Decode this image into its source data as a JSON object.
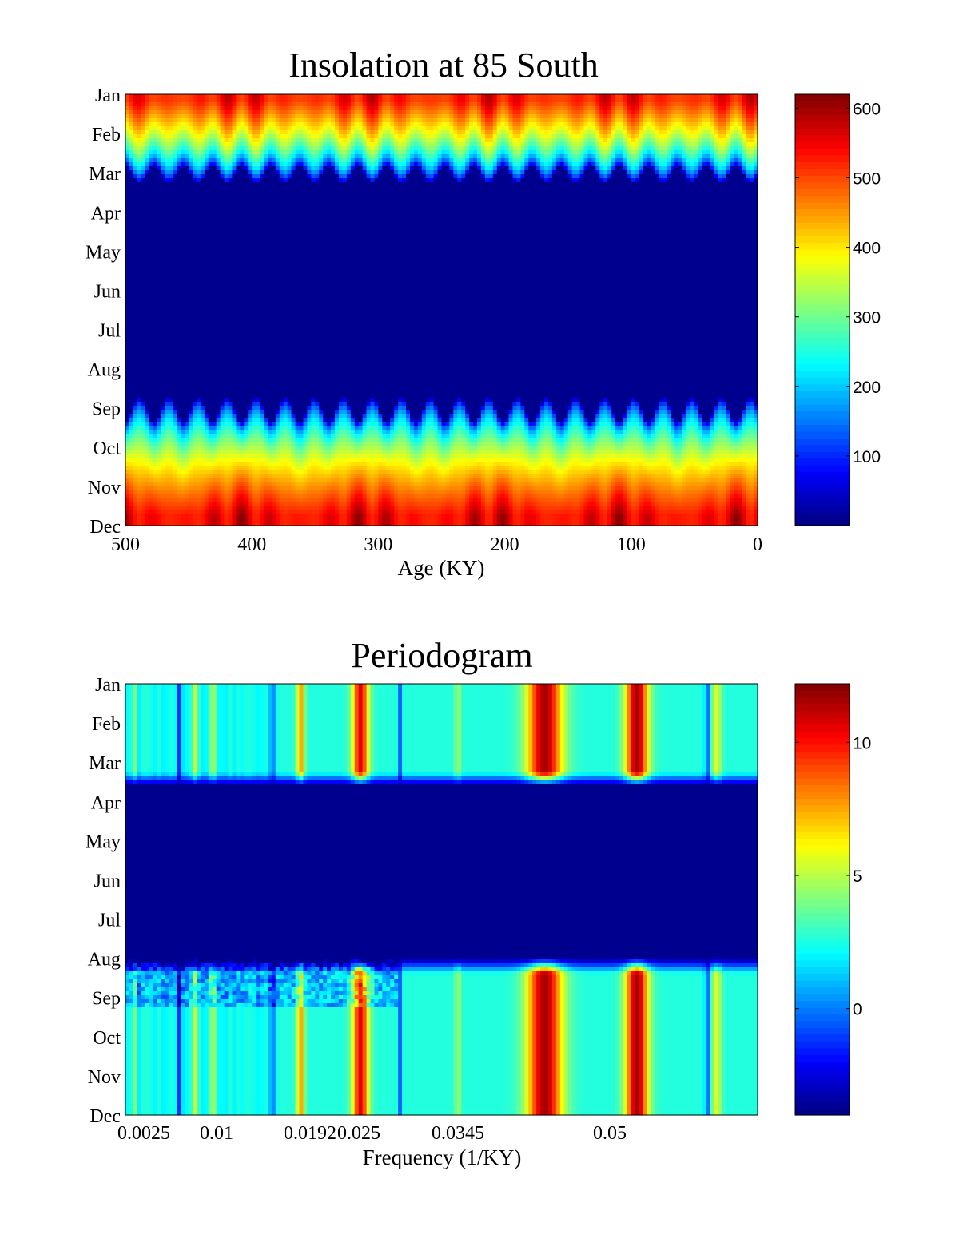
{
  "chart_data": [
    {
      "type": "heatmap",
      "title": "Insolation at 85 South",
      "xlabel": "Age (KY)",
      "ylabel": "",
      "xlim": [
        500,
        0
      ],
      "x_ticks": [
        "500",
        "400",
        "300",
        "200",
        "100",
        "0"
      ],
      "y_categories": [
        "Jan",
        "Feb",
        "Mar",
        "Apr",
        "May",
        "Jun",
        "Jul",
        "Aug",
        "Sep",
        "Oct",
        "Nov",
        "Dec"
      ],
      "colorbar": {
        "colormap": "jet",
        "clim": [
          0,
          620
        ],
        "ticks": [
          "100",
          "200",
          "300",
          "400",
          "500",
          "600"
        ]
      },
      "description_values": {
        "summer_months_range": [
          420,
          620
        ],
        "winter_months_value": 0
      }
    },
    {
      "type": "heatmap",
      "title": "Periodogram",
      "xlabel": "Frequency (1/KY)",
      "ylabel": "",
      "x_ticks": [
        "0.0025",
        "0.01",
        "0.0192",
        "0.025",
        "0.0345",
        "0.05"
      ],
      "y_categories": [
        "Jan",
        "Feb",
        "Mar",
        "Apr",
        "May",
        "Jun",
        "Jul",
        "Aug",
        "Sep",
        "Oct",
        "Nov",
        "Dec"
      ],
      "colorbar": {
        "colormap": "jet",
        "clim": [
          -4,
          12.2
        ],
        "ticks": [
          "0",
          "5",
          "10"
        ]
      },
      "peak_frequencies": [
        0.0025,
        0.0192,
        0.025,
        0.0345,
        0.043,
        0.0525,
        0.0612
      ]
    }
  ]
}
